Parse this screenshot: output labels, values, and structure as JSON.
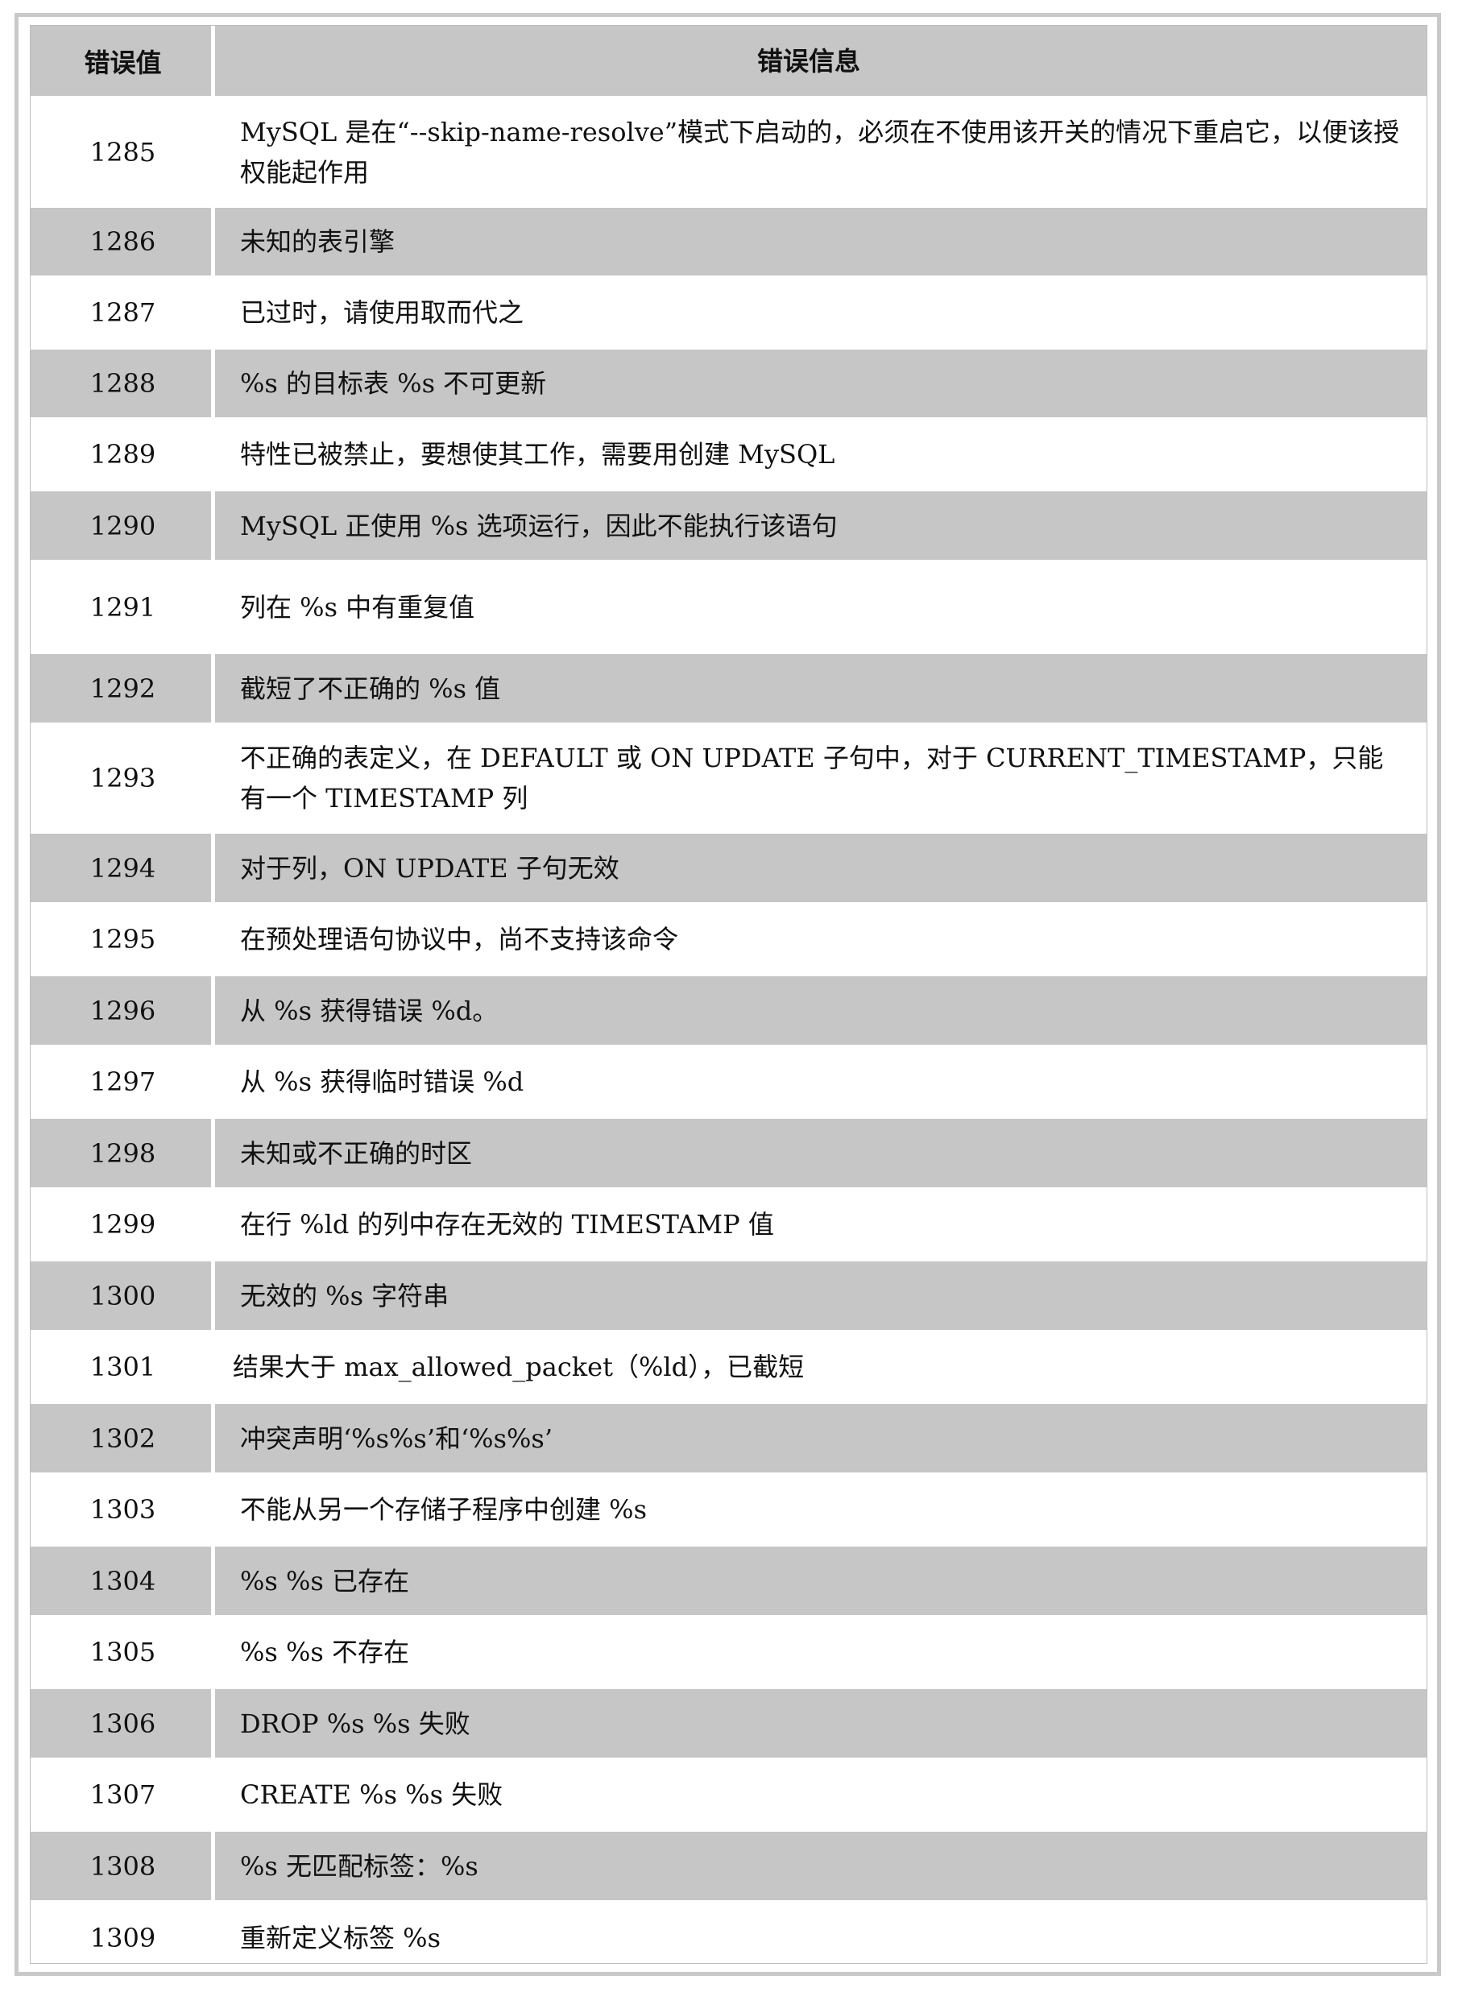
{
  "table": {
    "headers": {
      "code": "错误值",
      "message": "错误信息"
    },
    "rows": [
      {
        "code": "1285",
        "message": "MySQL 是在“--skip-name-resolve”模式下启动的，必须在不使用该开关的情况下重启它，以便该授权能起作用"
      },
      {
        "code": "1286",
        "message": "未知的表引擎"
      },
      {
        "code": "1287",
        "message": "已过时，请使用取而代之"
      },
      {
        "code": "1288",
        "message": "%s 的目标表 %s 不可更新"
      },
      {
        "code": "1289",
        "message": "特性已被禁止，要想使其工作，需要用创建 MySQL"
      },
      {
        "code": "1290",
        "message": "MySQL 正使用 %s 选项运行，因此不能执行该语句"
      },
      {
        "code": "1291",
        "message": "列在 %s 中有重复值"
      },
      {
        "code": "1292",
        "message": "截短了不正确的 %s 值"
      },
      {
        "code": "1293",
        "message": "不正确的表定义，在 DEFAULT 或 ON UPDATE 子句中，对于 CURRENT_TIMESTAMP，只能有一个 TIMESTAMP 列"
      },
      {
        "code": "1294",
        "message": "对于列，ON UPDATE 子句无效"
      },
      {
        "code": "1295",
        "message": "在预处理语句协议中，尚不支持该命令"
      },
      {
        "code": "1296",
        "message": "从 %s 获得错误 %d。"
      },
      {
        "code": "1297",
        "message": "从 %s 获得临时错误 %d"
      },
      {
        "code": "1298",
        "message": "未知或不正确的时区"
      },
      {
        "code": "1299",
        "message": "在行 %ld 的列中存在无效的 TIMESTAMP 值"
      },
      {
        "code": "1300",
        "message": "无效的 %s 字符串"
      },
      {
        "code": "1301",
        "message": "结果大于 max_allowed_packet（%ld），已截短"
      },
      {
        "code": "1302",
        "message": "冲突声明‘%s%s’和‘%s%s’"
      },
      {
        "code": "1303",
        "message": "不能从另一个存储子程序中创建 %s"
      },
      {
        "code": "1304",
        "message": "%s %s 已存在"
      },
      {
        "code": "1305",
        "message": "%s %s 不存在"
      },
      {
        "code": "1306",
        "message": "DROP %s %s 失败"
      },
      {
        "code": "1307",
        "message": "CREATE %s %s 失败"
      },
      {
        "code": "1308",
        "message": "%s 无匹配标签：%s"
      },
      {
        "code": "1309",
        "message": "重新定义标签 %s"
      }
    ]
  }
}
